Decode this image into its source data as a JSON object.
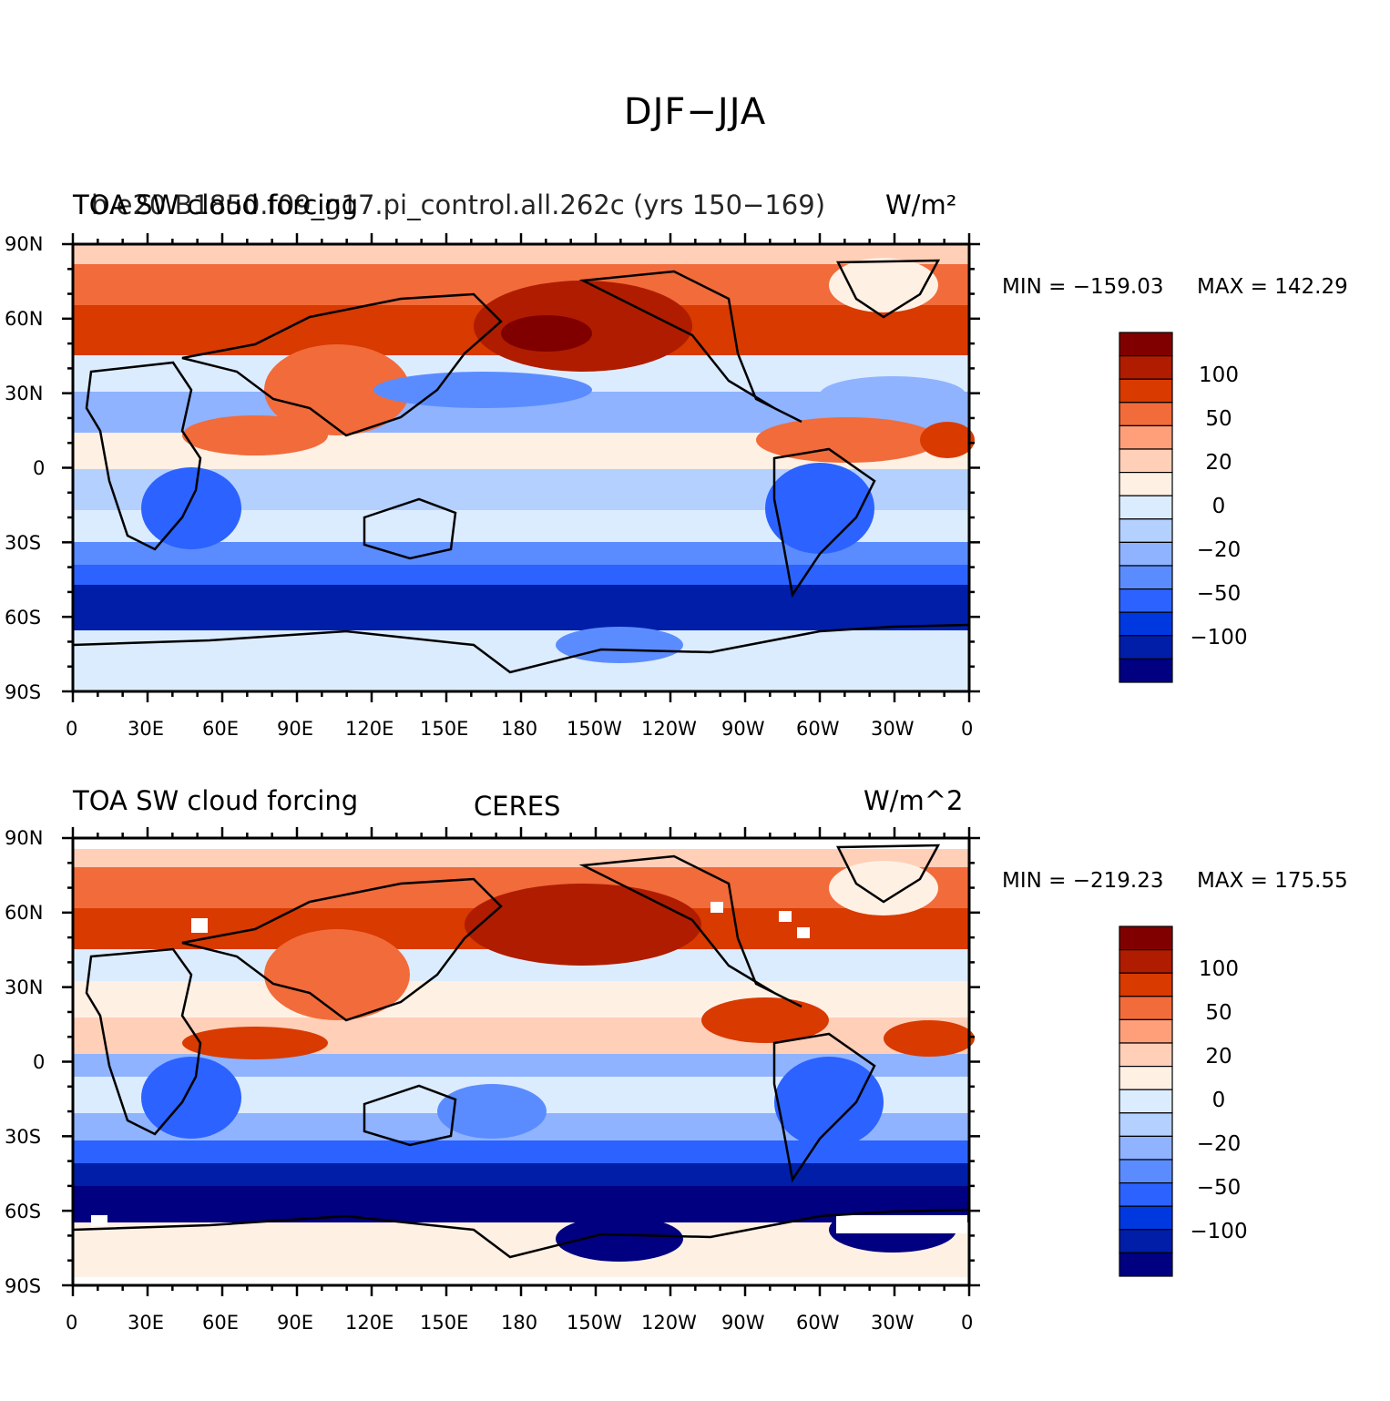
{
  "figure_title": "DJF−JJA",
  "lon_ticks": [
    "0",
    "30E",
    "60E",
    "90E",
    "120E",
    "150E",
    "180",
    "150W",
    "120W",
    "90W",
    "60W",
    "30W",
    "0"
  ],
  "lat_ticks": [
    "90N",
    "60N",
    "30N",
    "0",
    "30S",
    "60S",
    "90S"
  ],
  "colorbar_labels": [
    "100",
    "50",
    "20",
    "0",
    "−20",
    "−50",
    "−100"
  ],
  "colorbar_colors": [
    "#800000",
    "#b01c00",
    "#d83a00",
    "#f26b3a",
    "#ff9f7a",
    "#ffcfb8",
    "#fff0e4",
    "#dcecff",
    "#b4d0ff",
    "#8fb3ff",
    "#5b8cff",
    "#2c62ff",
    "#0038e0",
    "#001ea8",
    "#000080"
  ],
  "panels": [
    {
      "left_title": "TOA SW cloud forcing",
      "case_name": "b.e20.B1850.f09_g17.pi_control.all.262c (yrs 150−169)",
      "center_title": "",
      "units": "W/m²",
      "min_label": "MIN = −159.03",
      "max_label": "MAX = 142.29"
    },
    {
      "left_title": "TOA SW cloud forcing",
      "case_name": "",
      "center_title": "CERES",
      "units": "W/m^2",
      "min_label": "MIN = −219.23",
      "max_label": "MAX = 175.55"
    }
  ]
}
